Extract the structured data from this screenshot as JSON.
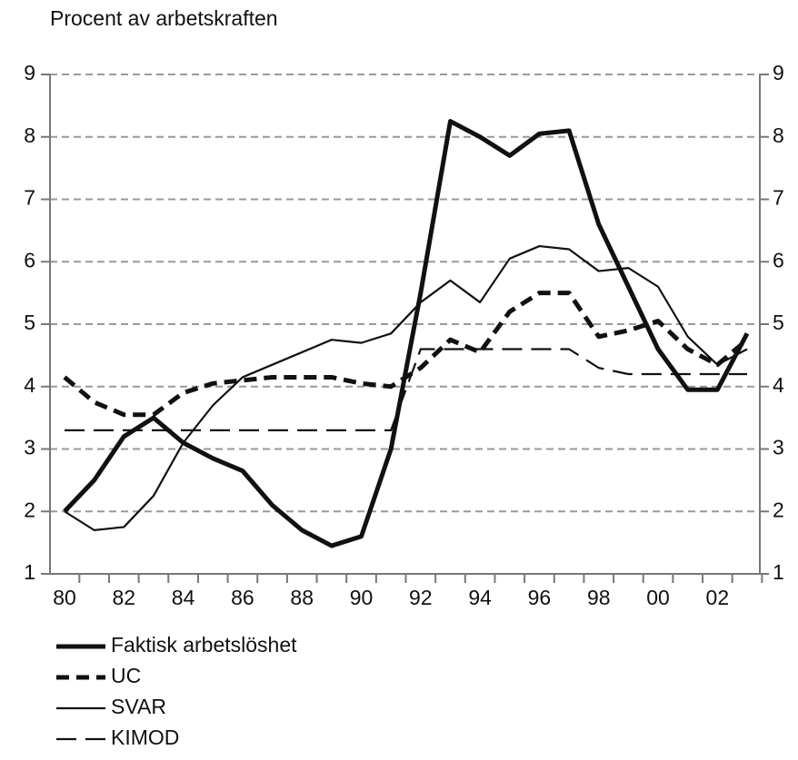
{
  "chart_data": {
    "type": "line",
    "title": "Procent av arbetskraften",
    "categories": [
      "80",
      null,
      "82",
      null,
      "84",
      null,
      "86",
      null,
      "88",
      null,
      "90",
      null,
      "92",
      null,
      "94",
      null,
      "96",
      null,
      "98",
      null,
      "00",
      null,
      "02",
      null
    ],
    "ylim": [
      1,
      9
    ],
    "yticks": [
      1,
      2,
      3,
      4,
      5,
      6,
      7,
      8,
      9
    ],
    "grid": true,
    "legend": "bottom",
    "series": [
      {
        "name": "Faktisk arbetslöshet",
        "color": "#111111",
        "line_style": "solid",
        "line_width": "thick",
        "values": [
          2.0,
          2.5,
          3.2,
          3.5,
          3.1,
          2.85,
          2.65,
          2.1,
          1.7,
          1.45,
          1.6,
          3.0,
          5.5,
          8.25,
          8.0,
          7.7,
          8.05,
          8.1,
          6.6,
          5.6,
          4.6,
          3.95,
          3.95,
          4.85
        ]
      },
      {
        "name": "UC",
        "color": "#111111",
        "line_style": "dashed",
        "line_width": "thick",
        "values": [
          4.15,
          3.75,
          3.55,
          3.55,
          3.9,
          4.05,
          4.1,
          4.15,
          4.15,
          4.15,
          4.05,
          4.0,
          4.3,
          4.75,
          4.55,
          5.2,
          5.5,
          5.5,
          4.8,
          4.9,
          5.05,
          4.6,
          4.35,
          4.75
        ]
      },
      {
        "name": "SVAR",
        "color": "#111111",
        "line_style": "solid",
        "line_width": "thin",
        "values": [
          2.0,
          1.7,
          1.75,
          2.25,
          3.1,
          3.7,
          4.15,
          4.35,
          4.55,
          4.75,
          4.7,
          4.85,
          5.35,
          5.7,
          5.35,
          6.05,
          6.25,
          6.2,
          5.85,
          5.9,
          5.6,
          4.8,
          4.35,
          4.6
        ]
      },
      {
        "name": "KIMOD",
        "color": "#111111",
        "line_style": "dashed",
        "line_width": "thin",
        "values": [
          3.3,
          3.3,
          3.3,
          3.3,
          3.3,
          3.3,
          3.3,
          3.3,
          3.3,
          3.3,
          3.3,
          3.3,
          4.6,
          4.6,
          4.6,
          4.6,
          4.6,
          4.6,
          4.3,
          4.2,
          4.2,
          4.2,
          4.2,
          4.2
        ]
      }
    ]
  }
}
